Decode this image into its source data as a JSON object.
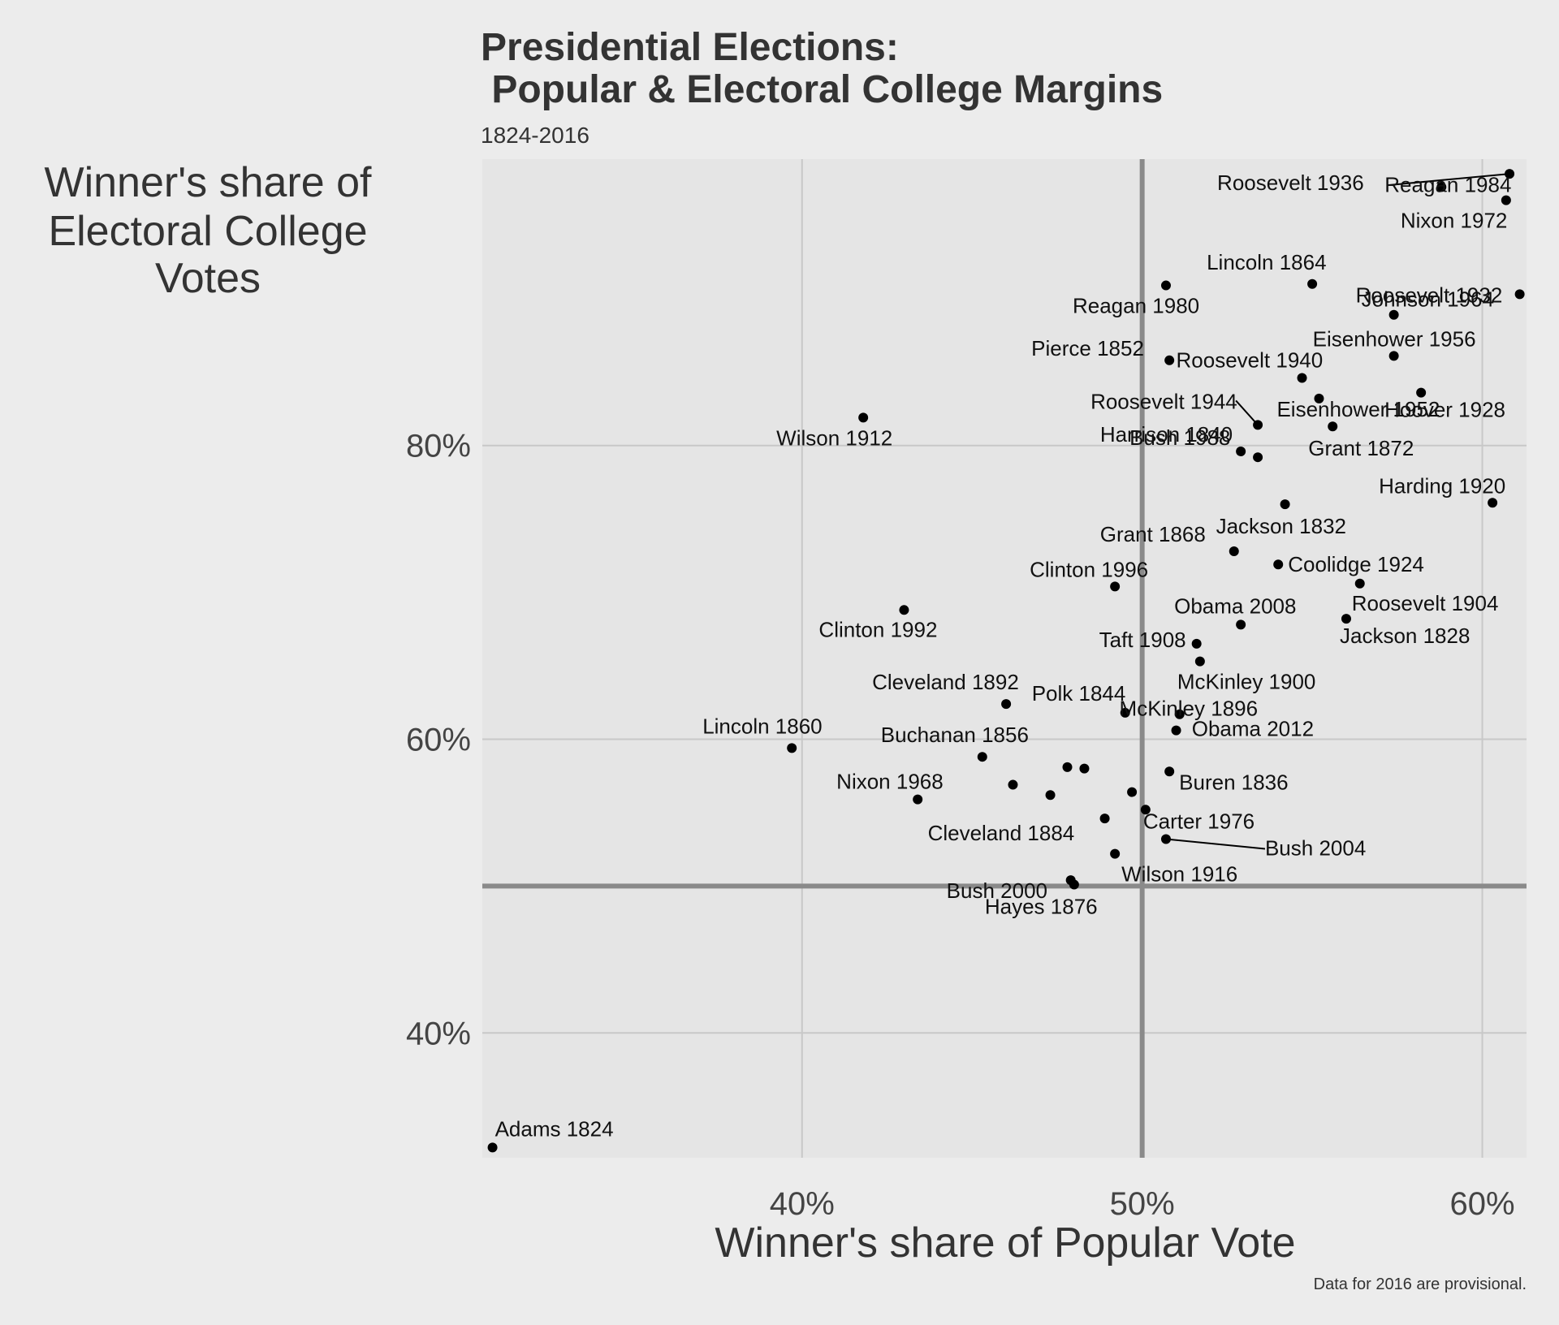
{
  "chart_data": {
    "type": "scatter",
    "title_line1": "Presidential Elections:",
    "title_line2": " Popular & Electoral College Margins",
    "subtitle": "1824-2016",
    "xlabel": "Winner's share of Popular Vote",
    "ylabel_lines": [
      "Winner's share of",
      "Electoral College",
      "Votes"
    ],
    "caption": "Data for 2016 are provisional.",
    "xlim": [
      30.6,
      61.3
    ],
    "ylim": [
      31.5,
      99.5
    ],
    "x_ticks": [
      {
        "value": 40,
        "label": "40%"
      },
      {
        "value": 50,
        "label": "50%"
      },
      {
        "value": 60,
        "label": "60%"
      }
    ],
    "y_ticks": [
      {
        "value": 40,
        "label": "40%"
      },
      {
        "value": 60,
        "label": "60%"
      },
      {
        "value": 80,
        "label": "80%"
      }
    ],
    "reference_lines": {
      "x": 50,
      "y": 50
    },
    "grid": true,
    "points": [
      {
        "label": "Adams 1824",
        "x": 30.9,
        "y": 32.2
      },
      {
        "label": "Jackson 1828",
        "x": 56.0,
        "y": 68.2
      },
      {
        "label": "Jackson 1832",
        "x": 54.2,
        "y": 76.0
      },
      {
        "label": "Buren 1836",
        "x": 50.8,
        "y": 57.8
      },
      {
        "label": "Harrison 1840",
        "x": 52.9,
        "y": 79.6
      },
      {
        "label": "Polk 1844",
        "x": 49.5,
        "y": 61.8
      },
      {
        "label": "",
        "x": 47.3,
        "y": 56.2
      },
      {
        "label": "Pierce 1852",
        "x": 50.8,
        "y": 85.8
      },
      {
        "label": "Buchanan 1856",
        "x": 45.3,
        "y": 58.8
      },
      {
        "label": "Lincoln 1860",
        "x": 39.7,
        "y": 59.4
      },
      {
        "label": "Lincoln 1864",
        "x": 55.0,
        "y": 91.0
      },
      {
        "label": "Grant 1868",
        "x": 52.7,
        "y": 72.8
      },
      {
        "label": "Grant 1872",
        "x": 55.6,
        "y": 81.3
      },
      {
        "label": "Hayes 1876",
        "x": 48.0,
        "y": 50.1
      },
      {
        "label": "",
        "x": 48.3,
        "y": 58.0
      },
      {
        "label": "Cleveland 1884",
        "x": 48.9,
        "y": 54.6
      },
      {
        "label": "",
        "x": 47.8,
        "y": 58.1
      },
      {
        "label": "Cleveland 1892",
        "x": 46.0,
        "y": 62.4
      },
      {
        "label": "McKinley 1896",
        "x": 51.0,
        "y": 60.6
      },
      {
        "label": "McKinley 1900",
        "x": 51.7,
        "y": 65.3
      },
      {
        "label": "Roosevelt 1904",
        "x": 56.4,
        "y": 70.6
      },
      {
        "label": "Taft 1908",
        "x": 51.6,
        "y": 66.5
      },
      {
        "label": "Wilson 1912",
        "x": 41.8,
        "y": 81.9
      },
      {
        "label": "Wilson 1916",
        "x": 49.2,
        "y": 52.2
      },
      {
        "label": "Harding 1920",
        "x": 60.3,
        "y": 76.1
      },
      {
        "label": "Coolidge 1924",
        "x": 54.0,
        "y": 71.9
      },
      {
        "label": "Hoover 1928",
        "x": 58.2,
        "y": 83.6
      },
      {
        "label": "Roosevelt 1932",
        "x": 57.4,
        "y": 88.9
      },
      {
        "label": "Roosevelt 1936",
        "x": 60.8,
        "y": 98.5
      },
      {
        "label": "Roosevelt 1940",
        "x": 54.7,
        "y": 84.6
      },
      {
        "label": "Roosevelt 1944",
        "x": 53.4,
        "y": 81.4
      },
      {
        "label": "Eisenhower 1952",
        "x": 55.2,
        "y": 83.2
      },
      {
        "label": "Eisenhower 1956",
        "x": 57.4,
        "y": 86.1
      },
      {
        "label": "",
        "x": 49.7,
        "y": 56.4
      },
      {
        "label": "Johnson 1964",
        "x": 61.1,
        "y": 90.3
      },
      {
        "label": "Nixon 1968",
        "x": 43.4,
        "y": 55.9
      },
      {
        "label": "Nixon 1972",
        "x": 60.7,
        "y": 96.7
      },
      {
        "label": "Carter 1976",
        "x": 50.1,
        "y": 55.2
      },
      {
        "label": "Reagan 1980",
        "x": 50.7,
        "y": 90.9
      },
      {
        "label": "Reagan 1984",
        "x": 58.8,
        "y": 97.6
      },
      {
        "label": "Bush 1988",
        "x": 53.4,
        "y": 79.2
      },
      {
        "label": "Clinton 1992",
        "x": 43.0,
        "y": 68.8
      },
      {
        "label": "Clinton 1996",
        "x": 49.2,
        "y": 70.4
      },
      {
        "label": "Bush 2000",
        "x": 47.9,
        "y": 50.4
      },
      {
        "label": "Bush 2004",
        "x": 50.7,
        "y": 53.2
      },
      {
        "label": "Obama 2008",
        "x": 52.9,
        "y": 67.8
      },
      {
        "label": "Obama 2012",
        "x": 51.1,
        "y": 61.7
      },
      {
        "label": "",
        "x": 46.2,
        "y": 56.9
      }
    ]
  }
}
